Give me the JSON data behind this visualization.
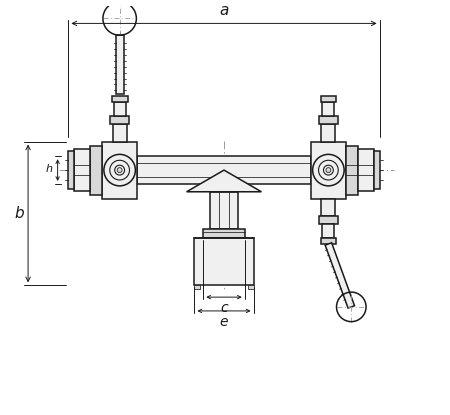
{
  "bg_color": "#ffffff",
  "line_color": "#1a1a1a",
  "dash_color": "#999999",
  "fill_light": "#f0f0f0",
  "fill_mid": "#d8d8d8",
  "fill_dark": "#b8b8b8",
  "fig_w": 4.5,
  "fig_h": 4.15,
  "dpi": 100,
  "label_a": "a",
  "label_b": "b",
  "label_c": "c",
  "label_e": "e",
  "label_h": "h"
}
